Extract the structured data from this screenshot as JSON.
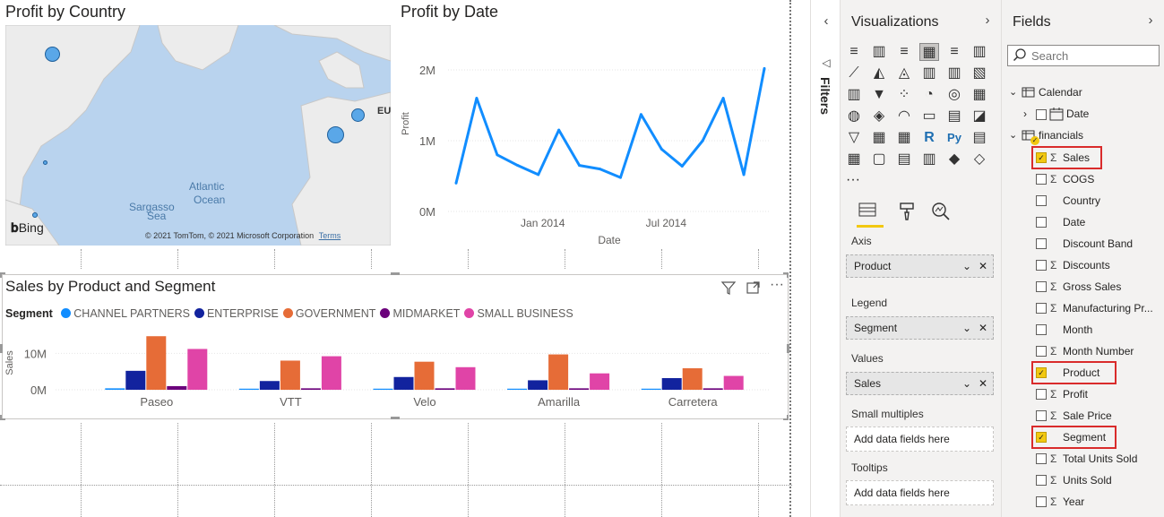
{
  "map_visual": {
    "title": "Profit by Country",
    "labels": {
      "atlantic": "Atlantic",
      "ocean": "Ocean",
      "sargasso": "Sargasso",
      "sea": "Sea",
      "eu": "EU"
    },
    "attribution": "© 2021 TomTom, © 2021 Microsoft Corporation",
    "terms": "Terms",
    "bing": "Bing"
  },
  "line_visual": {
    "title": "Profit by Date",
    "ylabel": "Profit",
    "xlabel": "Date"
  },
  "bar_visual": {
    "title": "Sales by Product and Segment",
    "legend_title": "Segment",
    "ylabel": "Sales"
  },
  "chart_data": [
    {
      "type": "line",
      "title": "Profit by Date",
      "xlabel": "Date",
      "ylabel": "Profit",
      "x_ticks": [
        "Jan 2014",
        "Jul 2014"
      ],
      "y_ticks": [
        "0M",
        "1M",
        "2M"
      ],
      "ylim": [
        0,
        2000000
      ],
      "x": [
        "2013-09",
        "2013-10",
        "2013-11",
        "2013-12",
        "2014-01",
        "2014-02",
        "2014-03",
        "2014-04",
        "2014-05",
        "2014-06",
        "2014-07",
        "2014-08",
        "2014-09",
        "2014-10",
        "2014-11",
        "2014-12"
      ],
      "series": [
        {
          "values": [
            400000,
            1600000,
            800000,
            650000,
            520000,
            1150000,
            650000,
            600000,
            480000,
            1370000,
            880000,
            640000,
            1000000,
            1600000,
            520000,
            2020000
          ]
        }
      ],
      "grid": true
    },
    {
      "type": "bar",
      "title": "Sales by Product and Segment",
      "xlabel": "",
      "ylabel": "Sales",
      "categories": [
        "Paseo",
        "VTT",
        "Velo",
        "Amarilla",
        "Carretera"
      ],
      "y_ticks": [
        "0M",
        "10M"
      ],
      "ylim": [
        0,
        15000000
      ],
      "legend_position": "top-left",
      "series": [
        {
          "name": "CHANNEL PARTNERS",
          "color": "#118dff",
          "values": [
            400000,
            300000,
            300000,
            300000,
            300000
          ]
        },
        {
          "name": "ENTERPRISE",
          "color": "#12239e",
          "values": [
            5200000,
            2400000,
            3500000,
            2600000,
            3200000
          ]
        },
        {
          "name": "GOVERNMENT",
          "color": "#e66c37",
          "values": [
            14700000,
            8000000,
            7700000,
            9700000,
            5900000
          ]
        },
        {
          "name": "MIDMARKET",
          "color": "#6b007b",
          "values": [
            1000000,
            400000,
            400000,
            400000,
            400000
          ]
        },
        {
          "name": "SMALL BUSINESS",
          "color": "#e044a7",
          "values": [
            11200000,
            9200000,
            6200000,
            4500000,
            3800000
          ]
        }
      ]
    }
  ],
  "filters_pane": {
    "label": "Filters"
  },
  "viz_pane": {
    "title": "Visualizations",
    "more": "···",
    "axis_label": "Axis",
    "axis_value": "Product",
    "legend_label": "Legend",
    "legend_value": "Segment",
    "values_label": "Values",
    "values_value": "Sales",
    "small_multiples_label": "Small multiples",
    "small_multiples_placeholder": "Add data fields here",
    "tooltips_label": "Tooltips",
    "tooltips_placeholder": "Add data fields here"
  },
  "fields_pane": {
    "title": "Fields",
    "search_placeholder": "Search",
    "tables": [
      {
        "name": "Calendar"
      },
      {
        "name": "financials"
      }
    ],
    "calendar_fields": [
      {
        "name": "Date"
      }
    ],
    "financials_fields": [
      {
        "name": "Sales",
        "sigma": true,
        "checked": true
      },
      {
        "name": "COGS",
        "sigma": true,
        "checked": false
      },
      {
        "name": "Country",
        "sigma": false,
        "checked": false
      },
      {
        "name": "Date",
        "sigma": false,
        "checked": false
      },
      {
        "name": "Discount Band",
        "sigma": false,
        "checked": false
      },
      {
        "name": "Discounts",
        "sigma": true,
        "checked": false
      },
      {
        "name": "Gross Sales",
        "sigma": true,
        "checked": false
      },
      {
        "name": "Manufacturing Pr...",
        "sigma": true,
        "checked": false
      },
      {
        "name": "Month",
        "sigma": false,
        "checked": false
      },
      {
        "name": "Month Number",
        "sigma": true,
        "checked": false
      },
      {
        "name": "Product",
        "sigma": false,
        "checked": true
      },
      {
        "name": "Profit",
        "sigma": true,
        "checked": false
      },
      {
        "name": "Sale Price",
        "sigma": true,
        "checked": false
      },
      {
        "name": "Segment",
        "sigma": false,
        "checked": true
      },
      {
        "name": "Total Units Sold",
        "sigma": true,
        "checked": false
      },
      {
        "name": "Units Sold",
        "sigma": true,
        "checked": false
      },
      {
        "name": "Year",
        "sigma": true,
        "checked": false
      }
    ]
  }
}
